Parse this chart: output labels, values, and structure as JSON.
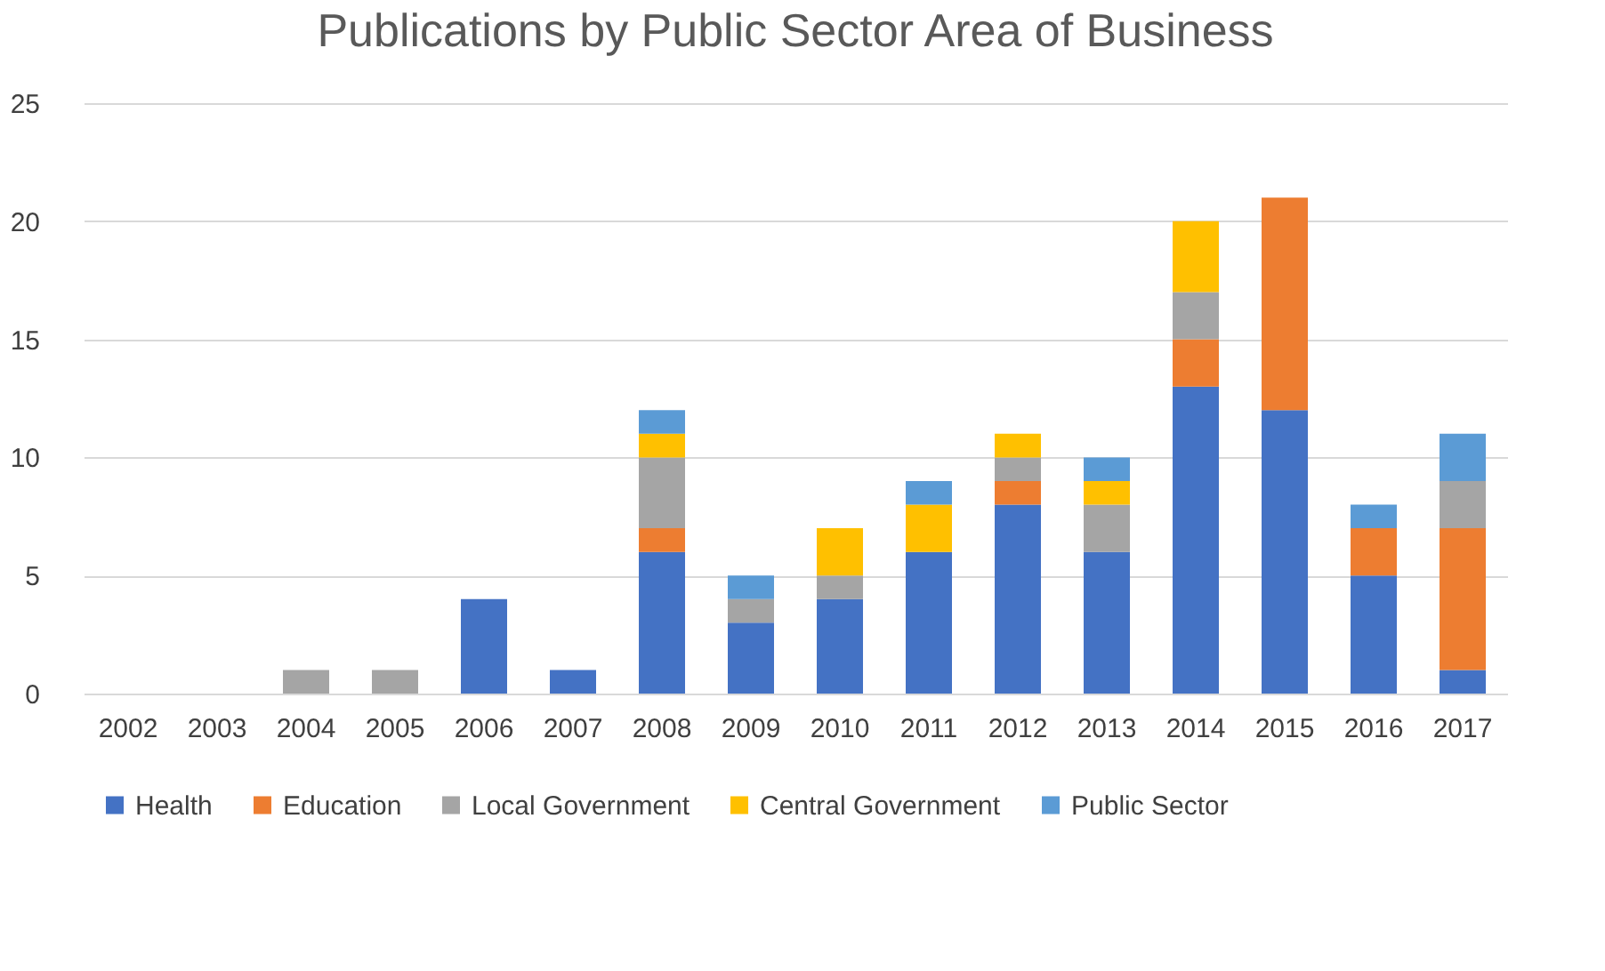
{
  "chart_data": {
    "type": "bar",
    "title": "Publications by Public Sector Area of Business",
    "stacked": true,
    "categories": [
      "2002",
      "2003",
      "2004",
      "2005",
      "2006",
      "2007",
      "2008",
      "2009",
      "2010",
      "2011",
      "2012",
      "2013",
      "2014",
      "2015",
      "2016",
      "2017"
    ],
    "series": [
      {
        "name": "Health",
        "color": "#4472c4",
        "values": [
          null,
          null,
          null,
          null,
          4,
          1,
          6,
          3,
          4,
          6,
          8,
          6,
          13,
          12,
          5,
          1
        ]
      },
      {
        "name": "Education",
        "color": "#ed7d31",
        "values": [
          null,
          null,
          null,
          null,
          null,
          null,
          1,
          null,
          null,
          null,
          1,
          null,
          2,
          9,
          2,
          6
        ]
      },
      {
        "name": "Local Government",
        "color": "#a5a5a5",
        "values": [
          null,
          null,
          1,
          1,
          null,
          null,
          3,
          1,
          1,
          null,
          1,
          2,
          2,
          null,
          null,
          2
        ]
      },
      {
        "name": "Central Government",
        "color": "#ffc000",
        "values": [
          null,
          null,
          null,
          null,
          null,
          null,
          1,
          null,
          2,
          2,
          1,
          1,
          3,
          null,
          null,
          null
        ]
      },
      {
        "name": "Public Sector",
        "color": "#5b9bd5",
        "values": [
          null,
          null,
          null,
          null,
          null,
          null,
          1,
          1,
          null,
          1,
          null,
          1,
          null,
          null,
          1,
          2
        ]
      }
    ],
    "ylim": [
      0,
      25
    ],
    "yticks": [
      0,
      5,
      10,
      15,
      20,
      25
    ],
    "grid": "y",
    "legend": "bottom"
  }
}
